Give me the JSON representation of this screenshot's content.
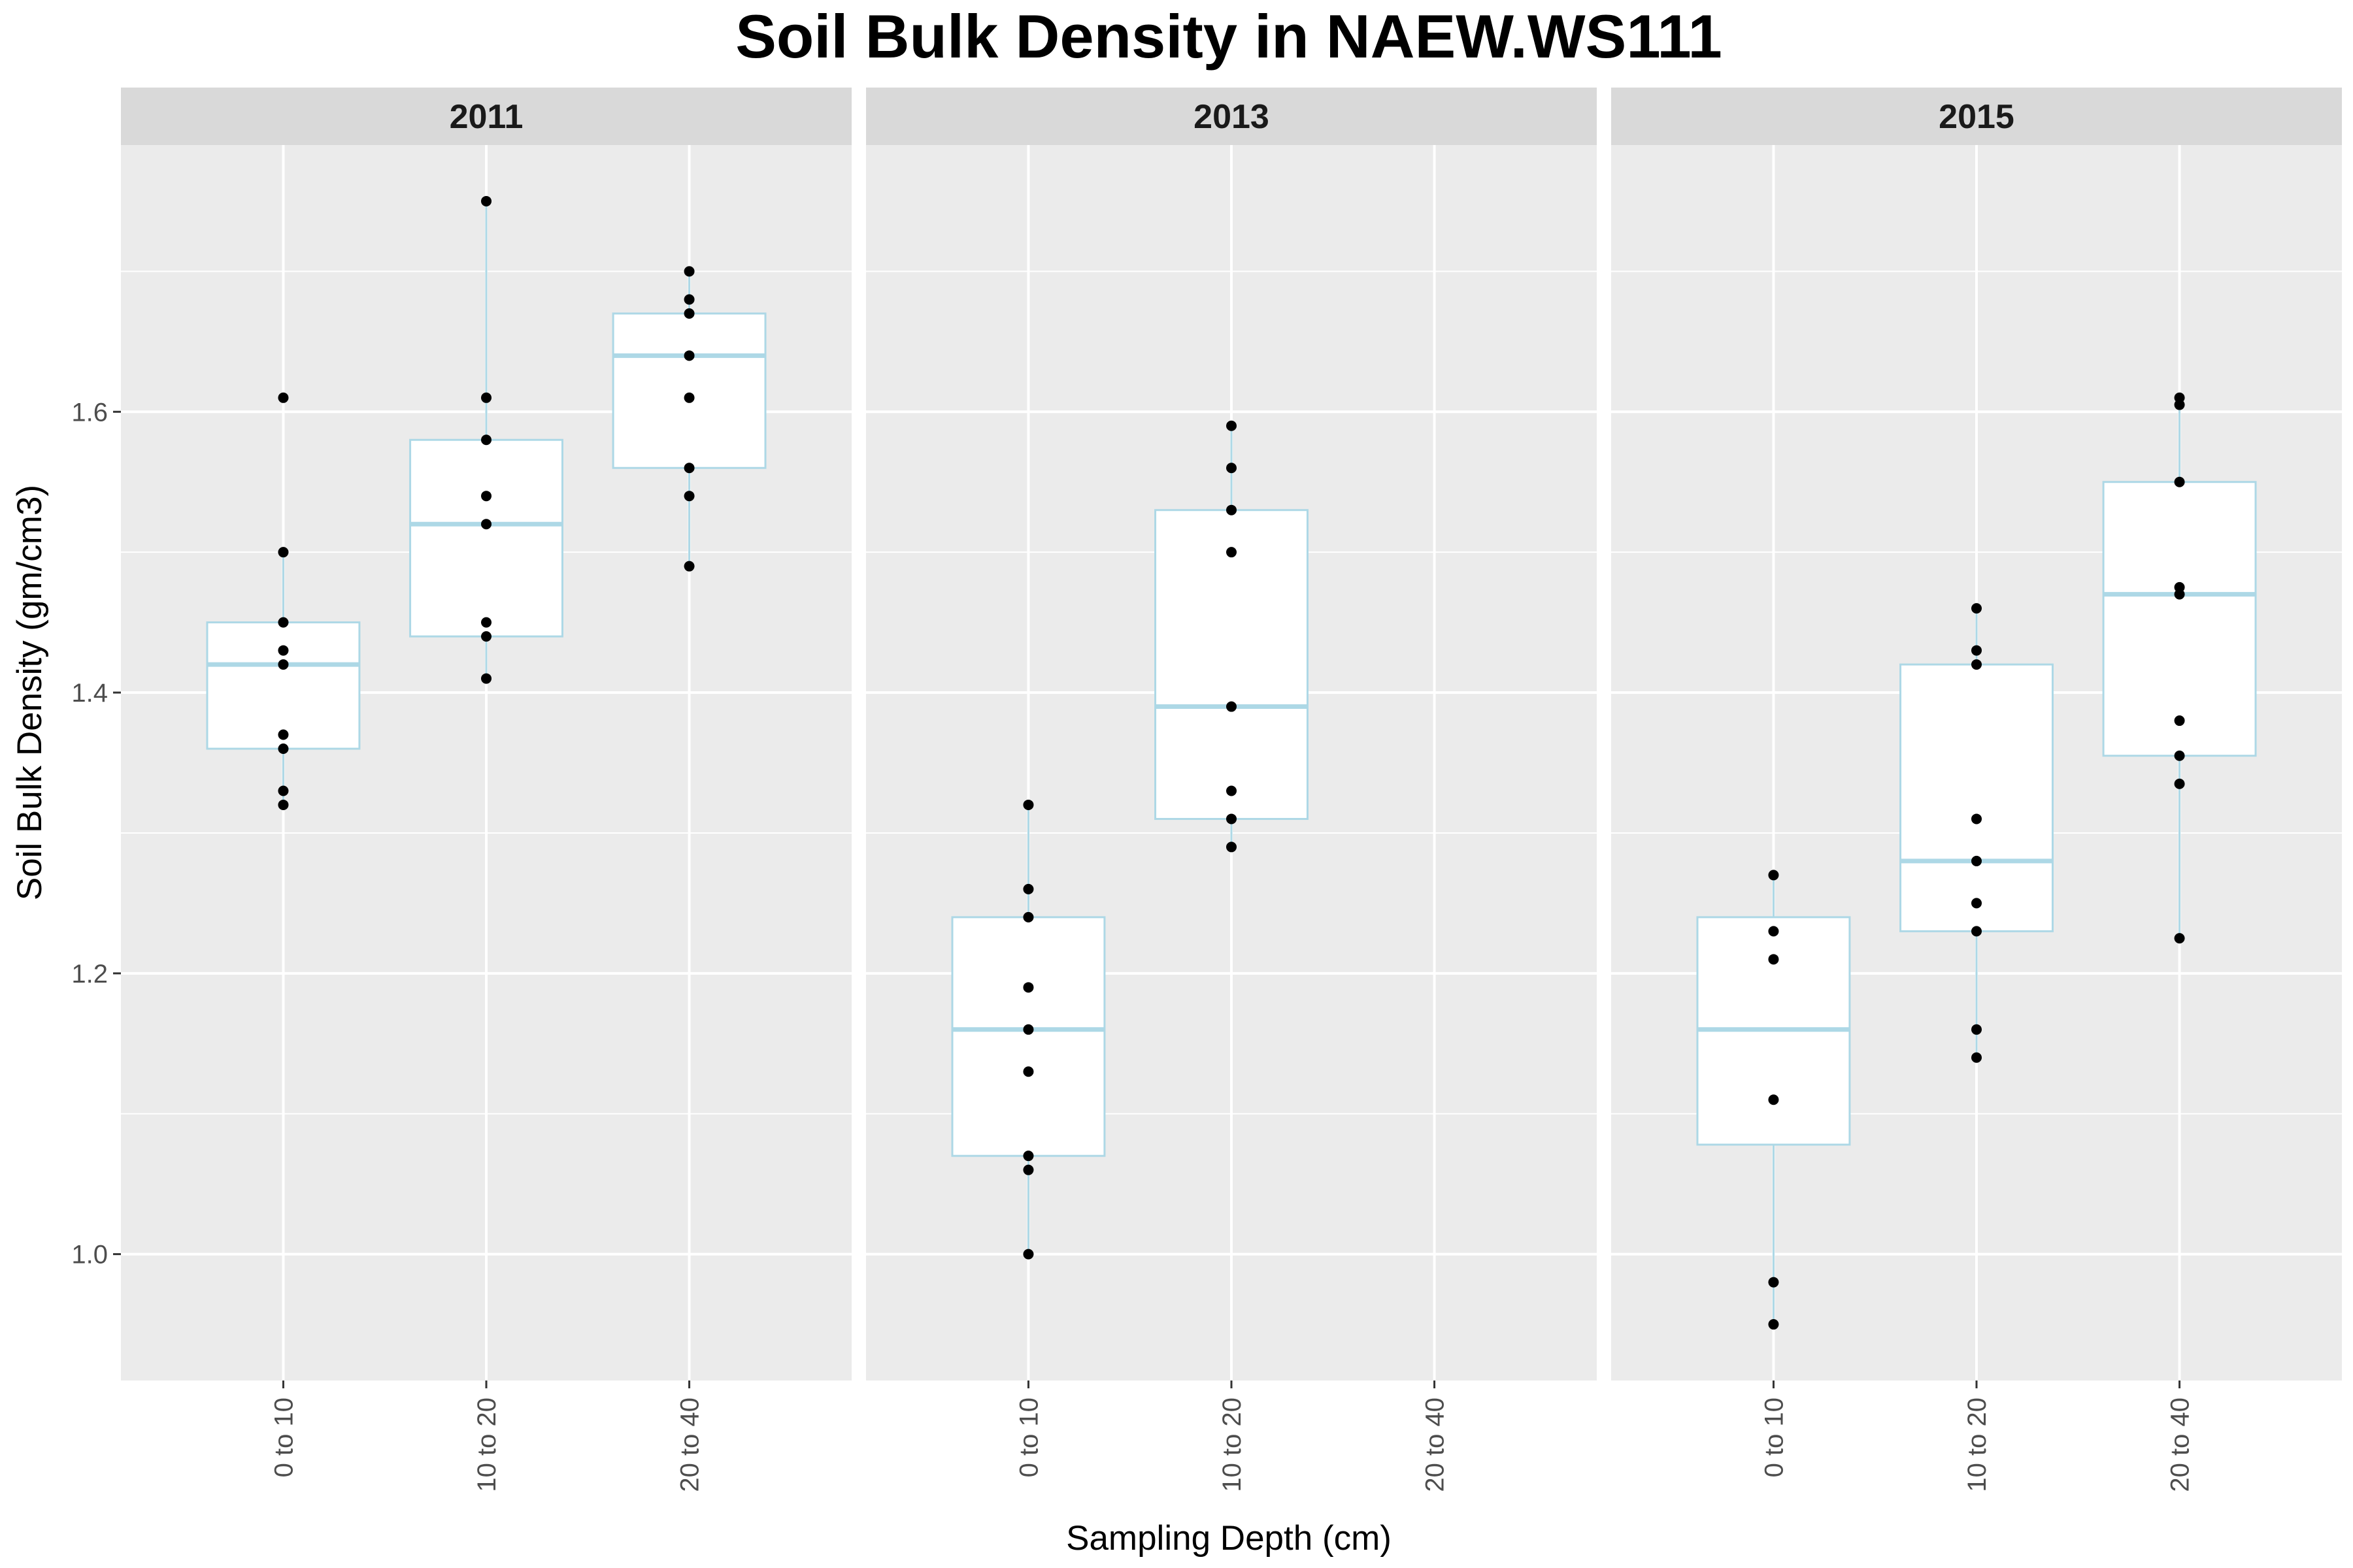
{
  "chart_data": {
    "type": "box",
    "title": "Soil Bulk Density in NAEW.WS111",
    "xlabel": "Sampling Depth (cm)",
    "ylabel": "Soil Bulk Density (gm/cm3)",
    "categories": [
      "0 to 10",
      "10 to 20",
      "20 to 40"
    ],
    "y_ticks": [
      "1.0",
      "1.2",
      "1.4",
      "1.6"
    ],
    "ylim": [
      0.91,
      1.79
    ],
    "grid": true,
    "colors": {
      "panel_bg": "#ebebeb",
      "strip_bg": "#d9d9d9",
      "grid": "#ffffff",
      "box_line": "#add8e6",
      "box_fill": "#ffffff",
      "point": "#000000"
    },
    "facets": [
      {
        "label": "2011",
        "boxes": [
          {
            "category": "0 to 10",
            "whisker_low": 1.32,
            "q1": 1.36,
            "median": 1.42,
            "q3": 1.45,
            "whisker_high": 1.5,
            "points": [
              1.61,
              1.5,
              1.45,
              1.43,
              1.42,
              1.37,
              1.36,
              1.33,
              1.32
            ]
          },
          {
            "category": "10 to 20",
            "whisker_low": 1.41,
            "q1": 1.44,
            "median": 1.52,
            "q3": 1.58,
            "whisker_high": 1.75,
            "points": [
              1.75,
              1.61,
              1.58,
              1.54,
              1.52,
              1.45,
              1.44,
              1.41
            ]
          },
          {
            "category": "20 to 40",
            "whisker_low": 1.49,
            "q1": 1.56,
            "median": 1.64,
            "q3": 1.67,
            "whisker_high": 1.7,
            "points": [
              1.7,
              1.68,
              1.67,
              1.64,
              1.61,
              1.56,
              1.54,
              1.49
            ]
          }
        ]
      },
      {
        "label": "2013",
        "boxes": [
          {
            "category": "0 to 10",
            "whisker_low": 1.0,
            "q1": 1.07,
            "median": 1.16,
            "q3": 1.24,
            "whisker_high": 1.32,
            "points": [
              1.32,
              1.26,
              1.24,
              1.19,
              1.16,
              1.13,
              1.07,
              1.06,
              1.0
            ]
          },
          {
            "category": "10 to 20",
            "whisker_low": 1.29,
            "q1": 1.31,
            "median": 1.39,
            "q3": 1.53,
            "whisker_high": 1.59,
            "points": [
              1.59,
              1.56,
              1.53,
              1.5,
              1.39,
              1.33,
              1.31,
              1.29
            ]
          }
        ]
      },
      {
        "label": "2015",
        "boxes": [
          {
            "category": "0 to 10",
            "whisker_low": 0.95,
            "q1": 1.078,
            "median": 1.16,
            "q3": 1.24,
            "whisker_high": 1.27,
            "points": [
              1.27,
              1.23,
              1.21,
              1.11,
              0.98,
              0.95
            ]
          },
          {
            "category": "10 to 20",
            "whisker_low": 1.14,
            "q1": 1.23,
            "median": 1.28,
            "q3": 1.42,
            "whisker_high": 1.46,
            "points": [
              1.46,
              1.43,
              1.42,
              1.31,
              1.28,
              1.25,
              1.23,
              1.16,
              1.14
            ]
          },
          {
            "category": "20 to 40",
            "whisker_low": 1.225,
            "q1": 1.355,
            "median": 1.47,
            "q3": 1.55,
            "whisker_high": 1.61,
            "points": [
              1.61,
              1.605,
              1.55,
              1.475,
              1.47,
              1.38,
              1.355,
              1.335,
              1.225
            ]
          }
        ]
      }
    ]
  }
}
